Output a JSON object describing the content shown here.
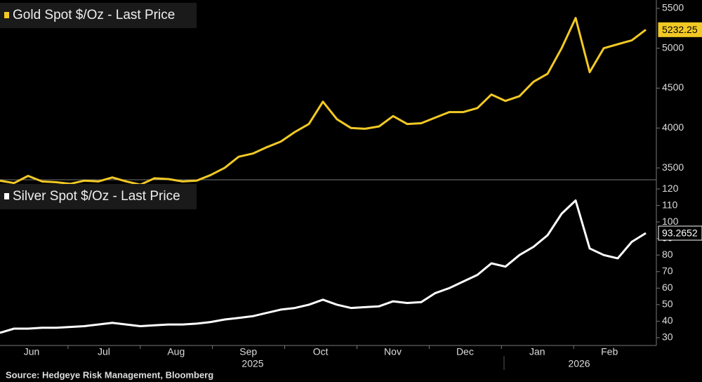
{
  "chart_data": [
    {
      "type": "line",
      "series": [
        {
          "name": "Gold Spot $/Oz - Last Price",
          "color": "#f2c924",
          "values": [
            3340,
            3310,
            3400,
            3330,
            3320,
            3300,
            3340,
            3330,
            3380,
            3330,
            3290,
            3370,
            3360,
            3330,
            3340,
            3410,
            3500,
            3640,
            3680,
            3760,
            3830,
            3950,
            4050,
            4330,
            4110,
            4000,
            3990,
            4020,
            4150,
            4050,
            4060,
            4130,
            4200,
            4200,
            4250,
            4420,
            4340,
            4400,
            4580,
            4680,
            5000,
            5380,
            4700,
            5000,
            5050,
            5100,
            5232.25
          ]
        }
      ],
      "ylim": [
        3360,
        5605
      ],
      "yticks": [
        3500,
        4000,
        4500,
        5000,
        5500
      ]
    },
    {
      "type": "line",
      "series": [
        {
          "name": "Silver Spot $/Oz - Last Price",
          "color": "#ffffff",
          "values": [
            33,
            35.5,
            35.5,
            36,
            36,
            36.5,
            37,
            38,
            39,
            38,
            37,
            37.5,
            38,
            38,
            38.5,
            39.5,
            41,
            42,
            43,
            45,
            47,
            48,
            50,
            53,
            50,
            48,
            48.5,
            49,
            52,
            51,
            51.5,
            57,
            60,
            64,
            68,
            75,
            73,
            80,
            85,
            92,
            105,
            113,
            84,
            80,
            78,
            88,
            93.2652
          ]
        }
      ],
      "ylim": [
        25.3,
        124.7
      ],
      "yticks": [
        30,
        40,
        50,
        60,
        70,
        80,
        90,
        100,
        110,
        120
      ],
      "xticks": [
        "Jun",
        "Jul",
        "Aug",
        "Sep",
        "Oct",
        "Nov",
        "Dec",
        "Jan",
        "Feb"
      ],
      "years": [
        "2025",
        "2026"
      ]
    }
  ],
  "source": "Source: Hedgeye Risk Management, Bloomberg"
}
